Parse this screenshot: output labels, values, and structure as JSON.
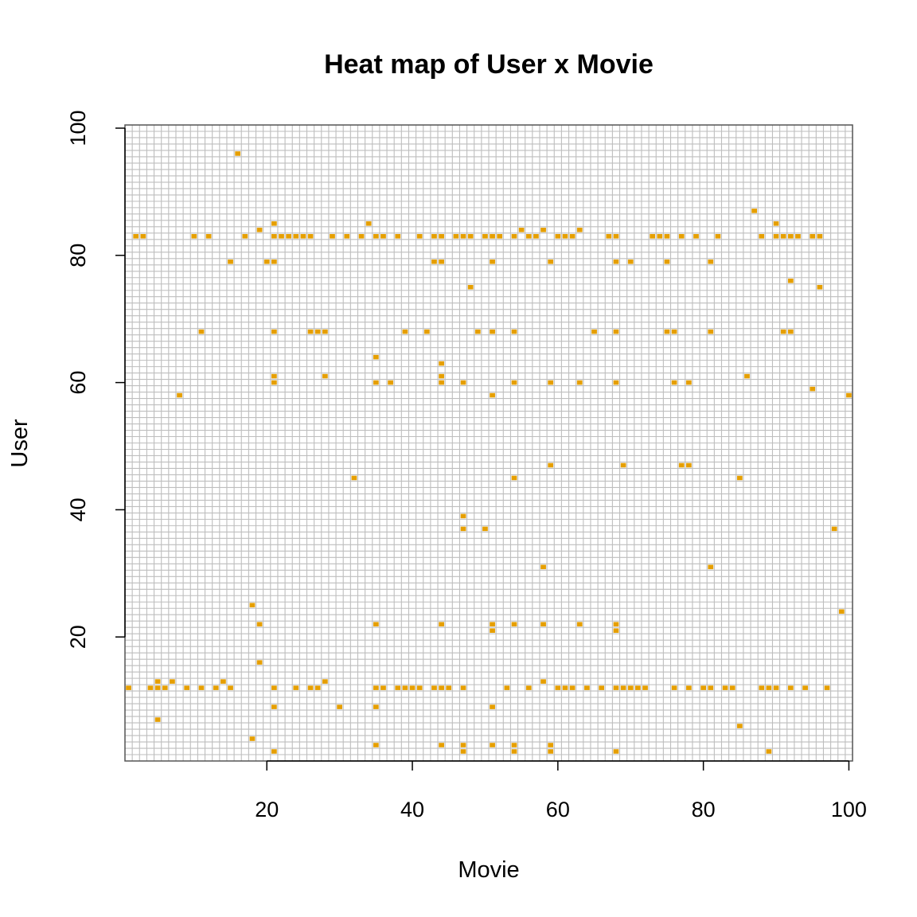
{
  "chart_data": {
    "type": "heatmap",
    "title": "Heat map of User x Movie",
    "xlabel": "Movie",
    "ylabel": "User",
    "xlim": [
      1,
      100
    ],
    "ylim": [
      1,
      100
    ],
    "x_ticks": [
      20,
      40,
      60,
      80,
      100
    ],
    "y_ticks": [
      20,
      40,
      60,
      80,
      100
    ],
    "grid": true,
    "colors": {
      "filled": "#e69f00",
      "empty": "#ffffff",
      "grid": "#bebebe"
    },
    "cells": [
      [
        16,
        96
      ],
      [
        87,
        87
      ],
      [
        34,
        85
      ],
      [
        21,
        85
      ],
      [
        90,
        85
      ],
      [
        19,
        84
      ],
      [
        55,
        84
      ],
      [
        58,
        84
      ],
      [
        63,
        84
      ],
      [
        2,
        83
      ],
      [
        3,
        83
      ],
      [
        10,
        83
      ],
      [
        12,
        83
      ],
      [
        17,
        83
      ],
      [
        21,
        83
      ],
      [
        22,
        83
      ],
      [
        23,
        83
      ],
      [
        24,
        83
      ],
      [
        25,
        83
      ],
      [
        26,
        83
      ],
      [
        29,
        83
      ],
      [
        31,
        83
      ],
      [
        33,
        83
      ],
      [
        35,
        83
      ],
      [
        36,
        83
      ],
      [
        38,
        83
      ],
      [
        41,
        83
      ],
      [
        43,
        83
      ],
      [
        44,
        83
      ],
      [
        46,
        83
      ],
      [
        47,
        83
      ],
      [
        48,
        83
      ],
      [
        50,
        83
      ],
      [
        51,
        83
      ],
      [
        52,
        83
      ],
      [
        54,
        83
      ],
      [
        56,
        83
      ],
      [
        57,
        83
      ],
      [
        60,
        83
      ],
      [
        61,
        83
      ],
      [
        62,
        83
      ],
      [
        67,
        83
      ],
      [
        68,
        83
      ],
      [
        73,
        83
      ],
      [
        74,
        83
      ],
      [
        75,
        83
      ],
      [
        77,
        83
      ],
      [
        79,
        83
      ],
      [
        82,
        83
      ],
      [
        88,
        83
      ],
      [
        90,
        83
      ],
      [
        91,
        83
      ],
      [
        92,
        83
      ],
      [
        93,
        83
      ],
      [
        95,
        83
      ],
      [
        96,
        83
      ],
      [
        15,
        79
      ],
      [
        20,
        79
      ],
      [
        21,
        79
      ],
      [
        43,
        79
      ],
      [
        44,
        79
      ],
      [
        51,
        79
      ],
      [
        59,
        79
      ],
      [
        68,
        79
      ],
      [
        70,
        79
      ],
      [
        75,
        79
      ],
      [
        81,
        79
      ],
      [
        92,
        76
      ],
      [
        48,
        75
      ],
      [
        96,
        75
      ],
      [
        11,
        68
      ],
      [
        21,
        68
      ],
      [
        26,
        68
      ],
      [
        27,
        68
      ],
      [
        28,
        68
      ],
      [
        39,
        68
      ],
      [
        42,
        68
      ],
      [
        49,
        68
      ],
      [
        51,
        68
      ],
      [
        54,
        68
      ],
      [
        65,
        68
      ],
      [
        68,
        68
      ],
      [
        75,
        68
      ],
      [
        76,
        68
      ],
      [
        81,
        68
      ],
      [
        91,
        68
      ],
      [
        92,
        68
      ],
      [
        35,
        64
      ],
      [
        44,
        63
      ],
      [
        21,
        61
      ],
      [
        28,
        61
      ],
      [
        44,
        61
      ],
      [
        86,
        61
      ],
      [
        21,
        60
      ],
      [
        35,
        60
      ],
      [
        37,
        60
      ],
      [
        44,
        60
      ],
      [
        47,
        60
      ],
      [
        54,
        60
      ],
      [
        59,
        60
      ],
      [
        63,
        60
      ],
      [
        68,
        60
      ],
      [
        76,
        60
      ],
      [
        78,
        60
      ],
      [
        95,
        59
      ],
      [
        8,
        58
      ],
      [
        51,
        58
      ],
      [
        100,
        58
      ],
      [
        59,
        47
      ],
      [
        69,
        47
      ],
      [
        77,
        47
      ],
      [
        78,
        47
      ],
      [
        32,
        45
      ],
      [
        54,
        45
      ],
      [
        85,
        45
      ],
      [
        47,
        39
      ],
      [
        47,
        37
      ],
      [
        50,
        37
      ],
      [
        98,
        37
      ],
      [
        58,
        31
      ],
      [
        81,
        31
      ],
      [
        18,
        25
      ],
      [
        99,
        24
      ],
      [
        19,
        22
      ],
      [
        35,
        22
      ],
      [
        44,
        22
      ],
      [
        51,
        22
      ],
      [
        54,
        22
      ],
      [
        58,
        22
      ],
      [
        63,
        22
      ],
      [
        68,
        22
      ],
      [
        51,
        21
      ],
      [
        68,
        21
      ],
      [
        19,
        16
      ],
      [
        5,
        13
      ],
      [
        7,
        13
      ],
      [
        14,
        13
      ],
      [
        28,
        13
      ],
      [
        58,
        13
      ],
      [
        1,
        12
      ],
      [
        4,
        12
      ],
      [
        5,
        12
      ],
      [
        6,
        12
      ],
      [
        9,
        12
      ],
      [
        11,
        12
      ],
      [
        13,
        12
      ],
      [
        15,
        12
      ],
      [
        21,
        12
      ],
      [
        24,
        12
      ],
      [
        26,
        12
      ],
      [
        27,
        12
      ],
      [
        35,
        12
      ],
      [
        36,
        12
      ],
      [
        38,
        12
      ],
      [
        39,
        12
      ],
      [
        40,
        12
      ],
      [
        41,
        12
      ],
      [
        43,
        12
      ],
      [
        44,
        12
      ],
      [
        45,
        12
      ],
      [
        47,
        12
      ],
      [
        53,
        12
      ],
      [
        56,
        12
      ],
      [
        60,
        12
      ],
      [
        61,
        12
      ],
      [
        62,
        12
      ],
      [
        64,
        12
      ],
      [
        66,
        12
      ],
      [
        68,
        12
      ],
      [
        69,
        12
      ],
      [
        70,
        12
      ],
      [
        71,
        12
      ],
      [
        72,
        12
      ],
      [
        76,
        12
      ],
      [
        78,
        12
      ],
      [
        80,
        12
      ],
      [
        81,
        12
      ],
      [
        83,
        12
      ],
      [
        84,
        12
      ],
      [
        88,
        12
      ],
      [
        89,
        12
      ],
      [
        90,
        12
      ],
      [
        92,
        12
      ],
      [
        94,
        12
      ],
      [
        97,
        12
      ],
      [
        21,
        9
      ],
      [
        30,
        9
      ],
      [
        35,
        9
      ],
      [
        51,
        9
      ],
      [
        5,
        7
      ],
      [
        85,
        6
      ],
      [
        18,
        4
      ],
      [
        35,
        3
      ],
      [
        44,
        3
      ],
      [
        47,
        3
      ],
      [
        51,
        3
      ],
      [
        54,
        3
      ],
      [
        59,
        3
      ],
      [
        21,
        2
      ],
      [
        47,
        2
      ],
      [
        54,
        2
      ],
      [
        59,
        2
      ],
      [
        68,
        2
      ],
      [
        89,
        2
      ]
    ]
  }
}
